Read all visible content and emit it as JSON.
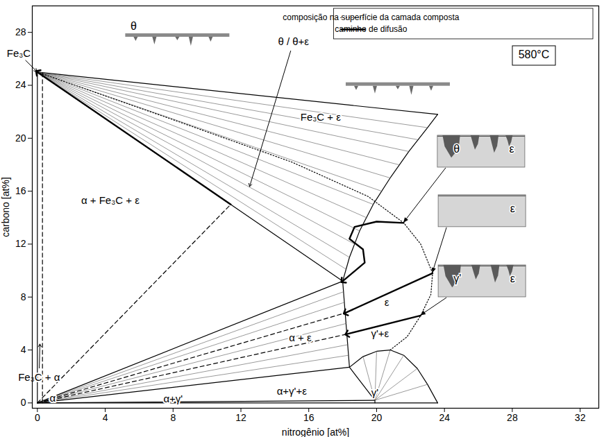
{
  "chart_data": {
    "type": "line",
    "title": "580°C",
    "x_label": "nitrogênio [at%]",
    "y_label": "carbono [at%]",
    "xlim": [
      -0.3,
      33.1
    ],
    "ylim": [
      -0.4,
      30.0
    ],
    "xticks": [
      0,
      4,
      8,
      12,
      16,
      20,
      24,
      28,
      32
    ],
    "yticks": [
      0,
      4,
      8,
      12,
      16,
      20,
      24,
      28
    ],
    "legend": "top-right",
    "series": [
      {
        "type": "boundary",
        "color": "#000000",
        "line_style": "solid",
        "values": [
          [
            0,
            25
          ],
          [
            18.0,
            9.2
          ],
          null,
          [
            0,
            0
          ],
          [
            18.0,
            9.2
          ],
          null,
          [
            0,
            0
          ],
          [
            0,
            25
          ],
          null,
          [
            18.0,
            9.2
          ],
          [
            18.4,
            2.7
          ],
          null,
          [
            18.0,
            9.2
          ],
          [
            18.4,
            11.0
          ],
          [
            19.0,
            13.0
          ],
          [
            19.8,
            15.0
          ],
          [
            20.8,
            17.0
          ],
          [
            21.9,
            19.0
          ],
          [
            23.0,
            20.8
          ],
          [
            23.6,
            21.8
          ],
          null,
          [
            0,
            25
          ],
          [
            23.6,
            21.8
          ],
          null,
          [
            0,
            0
          ],
          [
            18.4,
            2.7
          ],
          null,
          [
            0,
            0
          ],
          [
            19.9,
            0.2
          ],
          null,
          [
            19.9,
            0.2
          ],
          [
            18.4,
            2.7
          ],
          null,
          [
            18.4,
            2.7
          ],
          [
            19.2,
            3.5
          ],
          [
            20.0,
            3.9
          ],
          [
            20.8,
            4.0
          ],
          [
            21.6,
            3.6
          ],
          [
            22.4,
            2.6
          ],
          [
            23.0,
            1.4
          ],
          [
            23.6,
            0
          ],
          null,
          [
            0,
            0
          ],
          [
            23.6,
            0
          ],
          null,
          [
            19.9,
            0
          ],
          [
            19.9,
            0.2
          ]
        ]
      },
      {
        "type": "tie_line",
        "color": "#555555",
        "line_style": "solid",
        "values": [
          [
            0,
            25
          ],
          [
            18.2,
            10.1
          ],
          null,
          [
            0,
            25
          ],
          [
            18.4,
            11.0
          ],
          null,
          [
            0,
            25
          ],
          [
            18.7,
            12.0
          ],
          null,
          [
            0,
            25
          ],
          [
            19.0,
            13.0
          ],
          null,
          [
            0,
            25
          ],
          [
            19.4,
            14.0
          ],
          null,
          [
            0,
            25
          ],
          [
            19.8,
            15.0
          ],
          null,
          [
            0,
            25
          ],
          [
            20.3,
            16.0
          ],
          null,
          [
            0,
            25
          ],
          [
            20.8,
            17.0
          ],
          null,
          [
            0,
            25
          ],
          [
            21.3,
            18.0
          ],
          null,
          [
            0,
            25
          ],
          [
            21.9,
            19.0
          ],
          null,
          [
            0,
            25
          ],
          [
            22.4,
            19.9
          ],
          null,
          [
            0,
            25
          ],
          [
            23.0,
            20.8
          ],
          null,
          [
            0,
            0
          ],
          [
            18.05,
            8.4
          ],
          null,
          [
            0,
            0
          ],
          [
            18.1,
            7.6
          ],
          null,
          [
            0,
            0
          ],
          [
            18.2,
            6.0
          ],
          null,
          [
            0,
            0
          ],
          [
            18.3,
            4.4
          ],
          null,
          [
            0,
            0
          ],
          [
            18.35,
            3.6
          ],
          null,
          [
            19.9,
            0.2
          ],
          [
            19.2,
            3.5
          ],
          null,
          [
            19.9,
            0.2
          ],
          [
            20.0,
            3.9
          ],
          null,
          [
            19.9,
            0.2
          ],
          [
            20.8,
            4.0
          ],
          null,
          [
            19.9,
            0.2
          ],
          [
            21.6,
            3.6
          ],
          null,
          [
            19.9,
            0.2
          ],
          [
            22.4,
            2.6
          ],
          null,
          [
            19.9,
            0.2
          ],
          [
            23.0,
            1.4
          ]
        ]
      },
      {
        "type": "boundary",
        "color": "#000000",
        "line_style": "dashed",
        "values": [
          [
            0.3,
            0
          ],
          [
            0.3,
            25
          ],
          null,
          [
            0,
            0
          ],
          [
            11.4,
            15.0
          ],
          null,
          [
            0,
            0
          ],
          [
            18.15,
            6.8
          ],
          null,
          [
            0,
            0
          ],
          [
            18.25,
            5.2
          ]
        ]
      },
      {
        "name": "composição na superfície da camada composta",
        "type": "boundary",
        "color": "#000000",
        "line_style": "dotted",
        "values": [
          [
            0,
            25
          ],
          [
            8,
            21.4
          ],
          [
            15,
            18.2
          ],
          [
            19.5,
            15.6
          ],
          [
            21.6,
            13.6
          ],
          [
            22.6,
            12.0
          ],
          [
            23.3,
            9.8
          ],
          [
            23.2,
            8.2
          ],
          [
            22.6,
            6.6
          ],
          [
            21.8,
            5.0
          ],
          [
            20.8,
            4.0
          ]
        ]
      },
      {
        "name": "caminho de difusão",
        "type": "path",
        "color": "#000000",
        "line_style": "solid",
        "marker": "arrow",
        "values": [
          [
            11.4,
            15.0
          ],
          [
            0,
            25
          ],
          null,
          [
            21.6,
            13.6
          ],
          [
            20.0,
            13.7
          ],
          [
            18.7,
            13.3
          ],
          [
            18.4,
            12.4
          ],
          [
            19.2,
            11.6
          ],
          [
            19.3,
            10.6
          ],
          [
            18.0,
            9.2
          ],
          null,
          [
            23.3,
            9.8
          ],
          [
            18.15,
            6.8
          ],
          null,
          [
            22.6,
            6.6
          ],
          [
            18.25,
            5.2
          ]
        ]
      }
    ],
    "annotations": [
      {
        "text": "Fe₃C",
        "x": -1.1,
        "y": 26.4,
        "arrow_to": [
          0,
          25
        ]
      },
      {
        "text": "Fe₃C + α",
        "x": 0.1,
        "y": 1.9,
        "arrow_to": [
          0.15,
          4.5
        ]
      },
      {
        "text": "α",
        "x": 0.9,
        "y": 0.35
      },
      {
        "text": "θ / θ+ε",
        "x": 15.1,
        "y": 27.3,
        "arrow_to": [
          12.5,
          16.3
        ]
      },
      {
        "text": "α + Fe₃C + ε",
        "x": 4.3,
        "y": 15.3
      },
      {
        "text": "Fe₃C + ε",
        "x": 16.7,
        "y": 21.6
      },
      {
        "text": "ε",
        "x": 20.6,
        "y": 7.6
      },
      {
        "text": "α + ε",
        "x": 15.5,
        "y": 4.9
      },
      {
        "text": "γ'+ε",
        "x": 20.2,
        "y": 5.2
      },
      {
        "text": "α+γ'+ε",
        "x": 15.0,
        "y": 0.9
      },
      {
        "text": "α+γ'",
        "x": 8.0,
        "y": 0.3
      },
      {
        "text": "γ'",
        "x": 19.9,
        "y": 0.75
      }
    ],
    "insets": [
      {
        "type": "strip",
        "labels": [
          "θ"
        ],
        "x": 5.2,
        "y": 27.9
      },
      {
        "type": "strip",
        "labels": [],
        "x": 18.2,
        "y": 24.2
      },
      {
        "type": "layer",
        "labels": [
          "θ",
          "ε"
        ],
        "x": 23.6,
        "y": 20.2,
        "arrow_to": [
          21.6,
          13.6
        ]
      },
      {
        "type": "layer",
        "labels": [
          "ε"
        ],
        "x": 23.65,
        "y": 15.7,
        "arrow_to": [
          23.3,
          9.8
        ]
      },
      {
        "type": "layer",
        "labels": [
          "γ'",
          "ε"
        ],
        "x": 23.65,
        "y": 10.4,
        "arrow_to": [
          22.6,
          6.6
        ]
      }
    ]
  }
}
